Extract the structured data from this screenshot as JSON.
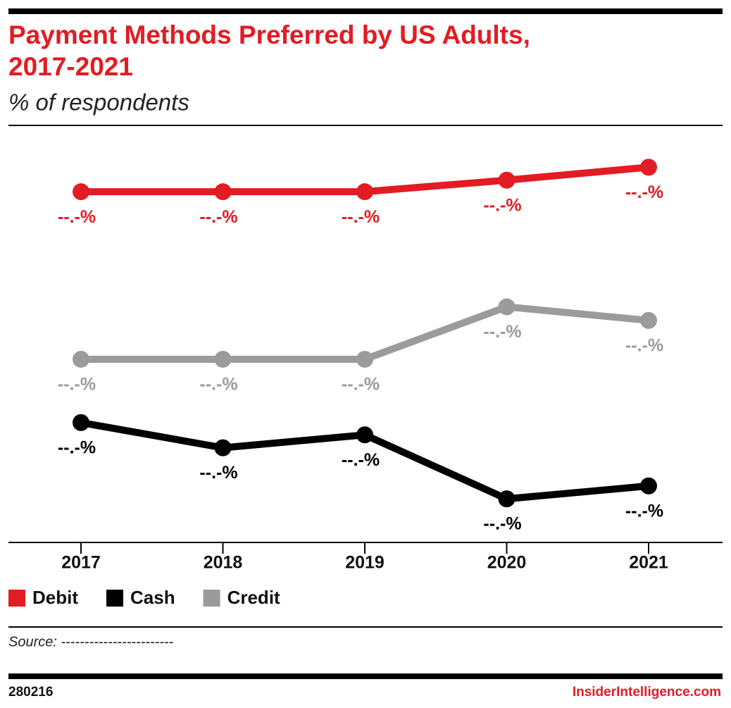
{
  "chart_data": {
    "type": "line",
    "title": [
      "Payment Methods Preferred by US Adults,",
      "2017-2021"
    ],
    "subtitle": "% of respondents",
    "categories": [
      "2017",
      "2018",
      "2019",
      "2020",
      "2021"
    ],
    "ylim": [
      0,
      60
    ],
    "series": [
      {
        "name": "Debit",
        "color": "#e31b23",
        "values": [
          51.5,
          51.5,
          51.5,
          53.2,
          55.1
        ],
        "value_labels": [
          "--.-%",
          "--.-%",
          "--.-%",
          "--.-%",
          "--.-%"
        ]
      },
      {
        "name": "Cash",
        "color": "#000000",
        "values": [
          17.6,
          13.9,
          15.8,
          6.4,
          8.3
        ],
        "value_labels": [
          "--.-%",
          "--.-%",
          "--.-%",
          "--.-%",
          "--.-%"
        ]
      },
      {
        "name": "Credit",
        "color": "#9b9b9b",
        "values": [
          26.9,
          26.9,
          26.9,
          34.6,
          32.6
        ],
        "value_labels": [
          "--.-%",
          "--.-%",
          "--.-%",
          "--.-%",
          "--.-%"
        ]
      }
    ],
    "source": "Source: ------------------------",
    "footer_id": "280216",
    "footer_brand": "InsiderIntelligence.com"
  }
}
